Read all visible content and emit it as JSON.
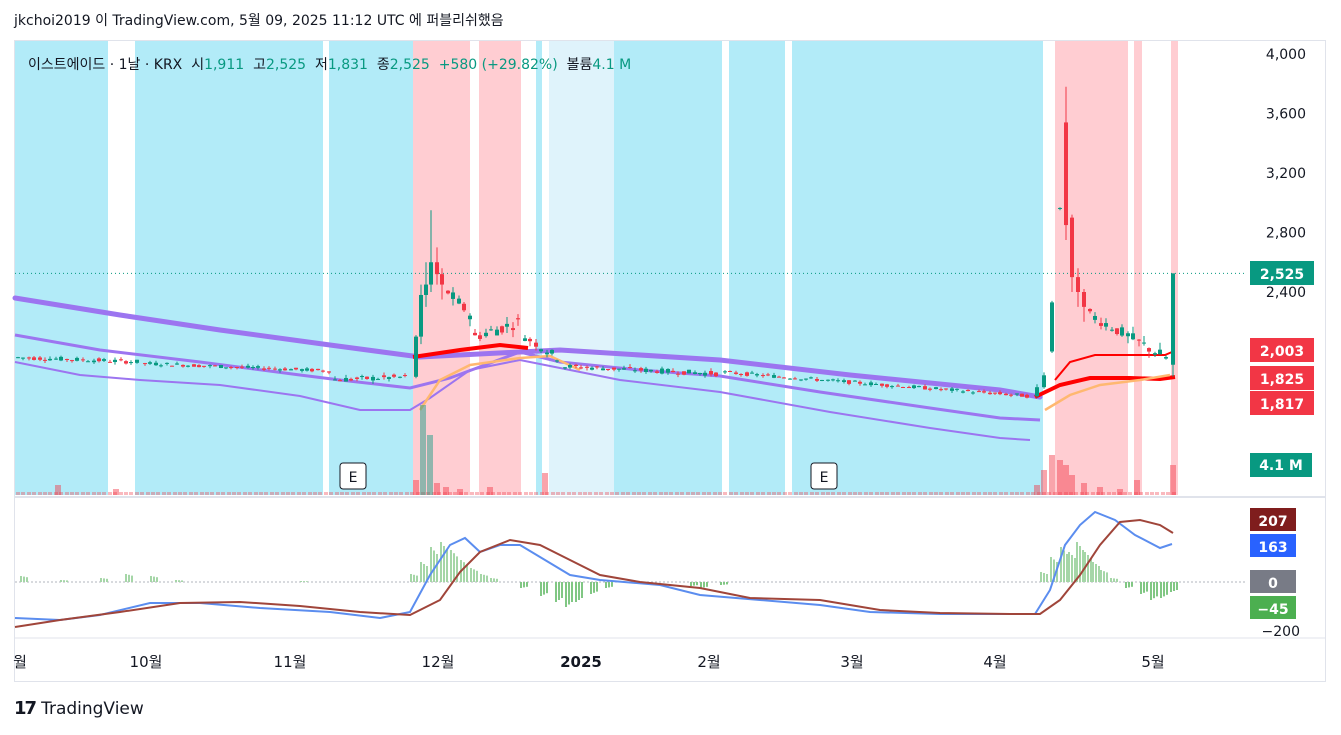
{
  "header": {
    "text": "jkchoi2019 이 TradingView.com, 5월 09, 2025 11:12 UTC 에 퍼블리쉬했음"
  },
  "legend": {
    "symbol": "이스트에이드 · 1날 · KRX",
    "open_label": "시",
    "open": "1,911",
    "high_label": "고",
    "high": "2,525",
    "low_label": "저",
    "low": "1,831",
    "close_label": "종",
    "close": "2,525",
    "change": "+580 (+29.82%)",
    "volume_label": "볼륨",
    "volume": "4.1 M"
  },
  "footer": {
    "brand": "TradingView"
  },
  "colors": {
    "up": "#089981",
    "down": "#f23645",
    "bg_blue": "#b2ebf8",
    "bg_red": "#ffcdd2",
    "bg_lightblue": "#dff3fb",
    "ma_purple": "#9c75f0",
    "ma_red": "#ff0000",
    "ma_orange": "#ffb870",
    "macd_blue": "#5b8def",
    "signal_brown": "#a0453a"
  },
  "chart_data": {
    "type": "candlestick",
    "y_axis": {
      "ticks": [
        "4,000",
        "3,600",
        "3,200",
        "2,800",
        "2,400"
      ],
      "tick_values": [
        4000,
        3600,
        3200,
        2800,
        2400
      ],
      "labels": [
        {
          "text": "2,525",
          "value": 2525,
          "color": "#089981"
        },
        {
          "text": "2,003",
          "value": 2003,
          "color": "#f23645"
        },
        {
          "text": "1,825",
          "value": 1825,
          "color": "#f23645"
        },
        {
          "text": "1,817",
          "value": 1817,
          "color": "#f23645"
        }
      ],
      "volume_label": {
        "text": "4.1 M",
        "color": "#089981"
      }
    },
    "x_axis": {
      "ticks": [
        "월",
        "10월",
        "11월",
        "12월",
        "2025",
        "2월",
        "3월",
        "4월",
        "5월"
      ]
    },
    "earnings_markers": [
      "E",
      "E"
    ],
    "macd_axis": {
      "labels": [
        {
          "text": "207",
          "color": "#7f1d1d"
        },
        {
          "text": "163",
          "color": "#2962ff"
        },
        {
          "text": "0",
          "color": "#787b86"
        },
        {
          "text": "−45",
          "color": "#4caf50"
        },
        {
          "text": "−200",
          "color": "none"
        }
      ]
    },
    "price_last": 2525,
    "ma_values": [
      2003,
      1825,
      1817
    ]
  }
}
